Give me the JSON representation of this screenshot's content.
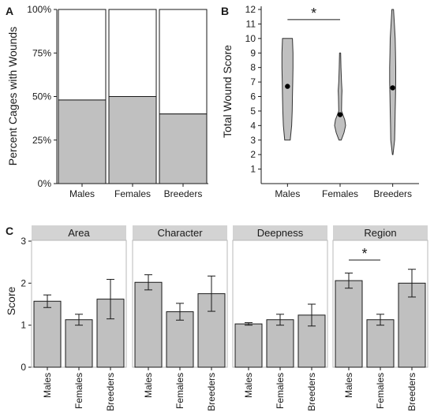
{
  "panels": [
    {
      "id": "A",
      "label": "A",
      "ylabel": "Percent Cages with Wounds",
      "chart_data": {
        "type": "bar",
        "stacked": true,
        "categories": [
          "Males",
          "Females",
          "Breeders"
        ],
        "values": [
          48,
          50,
          40
        ],
        "ylim": [
          0,
          100
        ],
        "yticks": [
          "0%",
          "25%",
          "50%",
          "75%",
          "100%"
        ],
        "colors": {
          "wounds": "#c0c0c0",
          "remainder": "#ffffff",
          "stroke": "#1a1a1a"
        }
      }
    },
    {
      "id": "B",
      "label": "B",
      "ylabel": "Total Wound Score",
      "chart_data": {
        "type": "violin",
        "categories": [
          "Males",
          "Females",
          "Breeders"
        ],
        "ylim": [
          0,
          12
        ],
        "yticks": [
          "1",
          "2",
          "3",
          "4",
          "5",
          "6",
          "7",
          "8",
          "9",
          "10",
          "11",
          "12"
        ],
        "series": [
          {
            "range": [
              3,
              10
            ],
            "mean": 6.7,
            "profile": [
              [
                3,
                0.5
              ],
              [
                4,
                0.75
              ],
              [
                5,
                0.85
              ],
              [
                6,
                0.9
              ],
              [
                7,
                0.95
              ],
              [
                8,
                1.0
              ],
              [
                9,
                1.0
              ],
              [
                10,
                0.9
              ]
            ]
          },
          {
            "range": [
              3,
              9
            ],
            "mean": 4.75,
            "profile": [
              [
                3,
                0.2
              ],
              [
                3.5,
                0.7
              ],
              [
                4,
                1.0
              ],
              [
                4.4,
                0.85
              ],
              [
                5,
                0.25
              ],
              [
                6,
                0.3
              ],
              [
                6.4,
                0.35
              ],
              [
                7,
                0.25
              ],
              [
                8,
                0.15
              ],
              [
                9,
                0.1
              ]
            ]
          },
          {
            "range": [
              2,
              12
            ],
            "mean": 6.6,
            "profile": [
              [
                2,
                0.05
              ],
              [
                3,
                0.35
              ],
              [
                4,
                0.4
              ],
              [
                5,
                0.45
              ],
              [
                6,
                0.5
              ],
              [
                7,
                0.55
              ],
              [
                8,
                0.55
              ],
              [
                9,
                0.5
              ],
              [
                10,
                0.45
              ],
              [
                11,
                0.3
              ],
              [
                12,
                0.15
              ]
            ]
          }
        ],
        "significance": {
          "between": [
            "Males",
            "Females"
          ],
          "label": "*"
        },
        "colors": {
          "fill": "#c0c0c0",
          "point": "#000000"
        }
      }
    },
    {
      "id": "C",
      "label": "C",
      "ylabel": "Score",
      "chart_data": {
        "type": "bar",
        "facets": [
          "Area",
          "Character",
          "Deepness",
          "Region"
        ],
        "categories": [
          "Males",
          "Females",
          "Breeders"
        ],
        "ylim": [
          0,
          3
        ],
        "yticks": [
          "0",
          "1",
          "2",
          "3"
        ],
        "series": [
          {
            "facet": "Area",
            "values": [
              1.57,
              1.13,
              1.62
            ],
            "errors": [
              0.15,
              0.13,
              0.47
            ]
          },
          {
            "facet": "Character",
            "values": [
              2.02,
              1.32,
              1.75
            ],
            "errors": [
              0.18,
              0.2,
              0.42
            ]
          },
          {
            "facet": "Deepness",
            "values": [
              1.03,
              1.13,
              1.24
            ],
            "errors": [
              0.03,
              0.13,
              0.26
            ]
          },
          {
            "facet": "Region",
            "values": [
              2.06,
              1.13,
              2.0
            ],
            "errors": [
              0.18,
              0.13,
              0.33
            ]
          }
        ],
        "significance": {
          "facet": "Region",
          "between": [
            "Males",
            "Females"
          ],
          "label": "*"
        },
        "colors": {
          "bar": "#c0c0c0",
          "strip": "#d3d3d3",
          "panel_border": "#b8b8b8"
        }
      }
    }
  ]
}
